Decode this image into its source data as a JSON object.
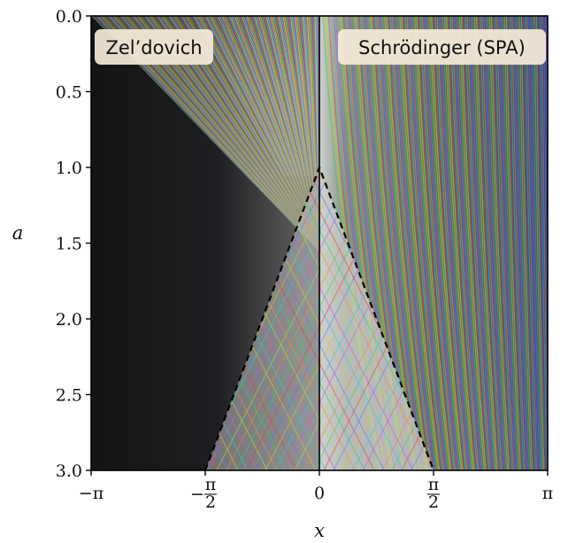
{
  "chart_data": {
    "type": "heatmap",
    "panels": [
      {
        "name": "Zel’dovich",
        "x_range": [
          "-π",
          "0"
        ]
      },
      {
        "name": "Schrödinger (SPA)",
        "x_range": [
          "0",
          "π"
        ]
      }
    ],
    "xlabel": "x",
    "ylabel": "a",
    "xlim": [
      -3.14159,
      3.14159
    ],
    "ylim": [
      0.0,
      3.0
    ],
    "y_inverted": true,
    "xticks": [
      {
        "value": -3.14159,
        "main": "−π"
      },
      {
        "value": -1.5708,
        "sign": "−",
        "num": "π",
        "den": "2"
      },
      {
        "value": 0,
        "main": "0"
      },
      {
        "value": 1.5708,
        "num": "π",
        "den": "2"
      },
      {
        "value": 3.14159,
        "main": "π"
      }
    ],
    "yticks": [
      {
        "value": 0.0,
        "label": "0.0"
      },
      {
        "value": 0.5,
        "label": "0.5"
      },
      {
        "value": 1.0,
        "label": "1.0"
      },
      {
        "value": 1.5,
        "label": "1.5"
      },
      {
        "value": 2.0,
        "label": "2.0"
      },
      {
        "value": 2.5,
        "label": "2.5"
      },
      {
        "value": 3.0,
        "label": "3.0"
      }
    ],
    "caustic_boundary": {
      "style": "dashed",
      "points": [
        [
          -1.5708,
          3.0
        ],
        [
          0,
          1.0
        ],
        [
          1.5708,
          3.0
        ]
      ]
    },
    "grid": false
  }
}
